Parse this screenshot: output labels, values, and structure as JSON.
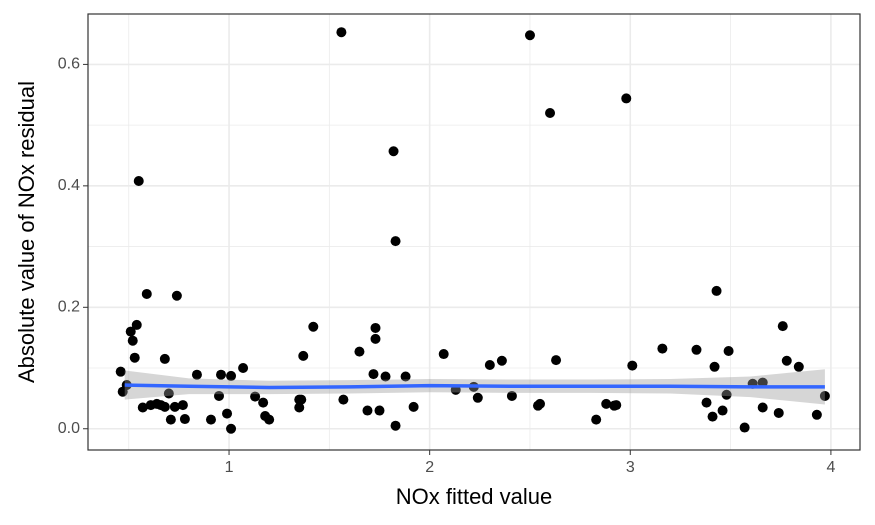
{
  "chart_data": {
    "type": "scatter_smooth",
    "x_label": "NOx fitted value",
    "y_label": "Absolute value of NOx residual",
    "xlim": [
      0.297,
      4.145
    ],
    "ylim": [
      -0.035,
      0.683
    ],
    "xticks": [
      1,
      2,
      3,
      4
    ],
    "yticks": [
      {
        "value": 0,
        "label": "0.0"
      },
      0.2,
      0.4,
      0.6
    ],
    "minor_xticks": [
      0.5,
      1.5,
      2.5,
      3.5
    ],
    "minor_yticks": [
      0.1,
      0.3,
      0.5
    ],
    "grid": true,
    "points": {
      "color": "#000000",
      "x": [
        0.46,
        0.47,
        0.49,
        0.51,
        0.52,
        0.53,
        0.54,
        0.55,
        0.57,
        0.59,
        0.61,
        0.64,
        0.66,
        0.68,
        0.68,
        0.7,
        0.71,
        0.73,
        0.74,
        0.77,
        0.78,
        0.84,
        0.91,
        0.95,
        0.96,
        0.99,
        1.01,
        1.01,
        1.07,
        1.13,
        1.17,
        1.18,
        1.2,
        1.35,
        1.35,
        1.36,
        1.37,
        1.42,
        1.56,
        1.57,
        1.65,
        1.69,
        1.72,
        1.73,
        1.73,
        1.75,
        1.78,
        1.82,
        1.83,
        1.83,
        1.88,
        1.92,
        2.07,
        2.13,
        2.22,
        2.24,
        2.3,
        2.36,
        2.41,
        2.5,
        2.54,
        2.55,
        2.6,
        2.63,
        2.83,
        2.88,
        2.92,
        2.93,
        2.98,
        3.01,
        3.16,
        3.33,
        3.38,
        3.41,
        3.42,
        3.43,
        3.46,
        3.48,
        3.49,
        3.57,
        3.61,
        3.66,
        3.66,
        3.74,
        3.76,
        3.78,
        3.84,
        3.93,
        3.97
      ],
      "y": [
        0.094,
        0.061,
        0.072,
        0.16,
        0.145,
        0.117,
        0.171,
        0.408,
        0.035,
        0.222,
        0.039,
        0.041,
        0.039,
        0.036,
        0.115,
        0.058,
        0.015,
        0.036,
        0.219,
        0.039,
        0.016,
        0.089,
        0.015,
        0.054,
        0.089,
        0.025,
        0.087,
        0.0,
        0.1,
        0.053,
        0.043,
        0.021,
        0.015,
        0.048,
        0.035,
        0.048,
        0.12,
        0.168,
        0.653,
        0.048,
        0.127,
        0.03,
        0.09,
        0.166,
        0.148,
        0.03,
        0.086,
        0.457,
        0.309,
        0.005,
        0.086,
        0.036,
        0.123,
        0.064,
        0.069,
        0.051,
        0.105,
        0.112,
        0.054,
        0.648,
        0.038,
        0.041,
        0.52,
        0.113,
        0.015,
        0.041,
        0.038,
        0.039,
        0.544,
        0.104,
        0.132,
        0.13,
        0.043,
        0.02,
        0.102,
        0.227,
        0.03,
        0.056,
        0.128,
        0.002,
        0.074,
        0.035,
        0.076,
        0.026,
        0.169,
        0.112,
        0.102,
        0.023,
        0.054
      ]
    },
    "smooth": {
      "color": "#3366ff",
      "band_color": "#999999",
      "x": [
        0.48,
        0.8,
        1.2,
        1.6,
        2.0,
        2.4,
        2.8,
        3.2,
        3.6,
        3.97
      ],
      "y": [
        0.072,
        0.07,
        0.068,
        0.069,
        0.071,
        0.07,
        0.07,
        0.07,
        0.069,
        0.069
      ],
      "ymin": [
        0.048,
        0.057,
        0.057,
        0.058,
        0.06,
        0.059,
        0.059,
        0.058,
        0.052,
        0.04
      ],
      "ymax": [
        0.096,
        0.083,
        0.079,
        0.08,
        0.082,
        0.081,
        0.081,
        0.082,
        0.086,
        0.098
      ]
    }
  }
}
